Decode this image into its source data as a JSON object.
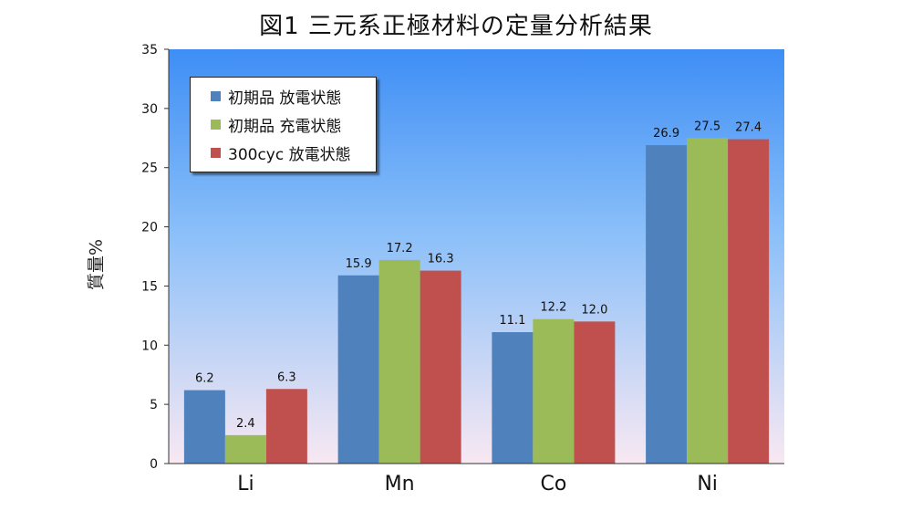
{
  "chart_data": {
    "type": "bar",
    "title": "図1 三元系正極材料の定量分析結果",
    "xlabel": "",
    "ylabel": "質量%",
    "ylim": [
      0,
      35
    ],
    "yticks": [
      0,
      5,
      10,
      15,
      20,
      25,
      30,
      35
    ],
    "categories": [
      "Li",
      "Mn",
      "Co",
      "Ni"
    ],
    "series": [
      {
        "name": "初期品 放電状態",
        "color": "#4f81bd",
        "values": [
          6.2,
          15.9,
          11.1,
          26.9
        ],
        "labels": [
          "6.2",
          "15.9",
          "11.1",
          "26.9"
        ]
      },
      {
        "name": "初期品 充電状態",
        "color": "#9bbb59",
        "values": [
          2.4,
          17.2,
          12.2,
          27.5
        ],
        "labels": [
          "2.4",
          "17.2",
          "12.2",
          "27.5"
        ]
      },
      {
        "name": "300cyc 放電状態",
        "color": "#c0504d",
        "values": [
          6.3,
          16.3,
          12.0,
          27.4
        ],
        "labels": [
          "6.3",
          "16.3",
          "12.0",
          "27.4"
        ]
      }
    ],
    "legend_position": "top-left",
    "grid": false,
    "background": {
      "top": "#3e8ef5",
      "bottom": "#f8e8f2"
    }
  }
}
